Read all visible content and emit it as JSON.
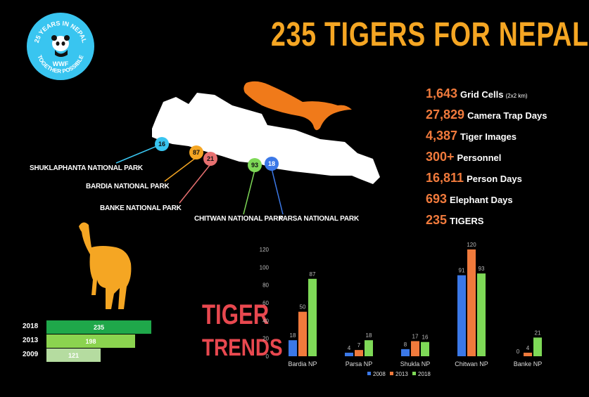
{
  "logo": {
    "ring_text": "25 YEARS IN NEPAL",
    "bottom_text": "TOGETHER POSSIBLE",
    "brand": "WWF",
    "color": "#39c5f0"
  },
  "title": "235 TIGERS FOR NEPAL",
  "stats": [
    {
      "num": "1,643",
      "label": "Grid Cells",
      "unit": "(2x2 km)"
    },
    {
      "num": "27,829",
      "label": "Camera Trap Days"
    },
    {
      "num": "4,387",
      "label": "Tiger Images"
    },
    {
      "num": "300+",
      "label": "Personnel"
    },
    {
      "num": "16,811",
      "label": "Person Days"
    },
    {
      "num": "693",
      "label": "Elephant Days"
    },
    {
      "num": "235",
      "label": "TIGERS"
    }
  ],
  "map": {
    "parks": [
      {
        "name": "SHUKLAPHANTA NATIONAL PARK",
        "count": "16",
        "color": "#39c5f0"
      },
      {
        "name": "BARDIA NATIONAL PARK",
        "count": "87",
        "color": "#f5a623"
      },
      {
        "name": "BANKE NATIONAL PARK",
        "count": "21",
        "color": "#e87070"
      },
      {
        "name": "CHITWAN NATIONAL PARK",
        "count": "93",
        "color": "#7ed957"
      },
      {
        "name": "PARSA NATIONAL PARK",
        "count": "18",
        "color": "#3b78e7"
      }
    ]
  },
  "trends": {
    "title": "TIGER",
    "subtitle": "TRENDS"
  },
  "chart_data": [
    {
      "type": "bar",
      "orientation": "horizontal",
      "categories": [
        "2018",
        "2013",
        "2009"
      ],
      "values": [
        235,
        198,
        121
      ],
      "colors": [
        "#1fa84a",
        "#8bd34f",
        "#b5dca0"
      ],
      "xlim": [
        0,
        255
      ]
    },
    {
      "type": "bar",
      "categories": [
        "Bardia NP",
        "Parsa NP",
        "Shukla NP",
        "Chitwan NP",
        "Banke NP"
      ],
      "series": [
        {
          "name": "2008",
          "values": [
            18,
            4,
            8,
            91,
            0
          ],
          "color": "#3b78e7"
        },
        {
          "name": "2013",
          "values": [
            50,
            7,
            17,
            120,
            4
          ],
          "color": "#f07a3c"
        },
        {
          "name": "2018",
          "values": [
            87,
            18,
            16,
            93,
            21
          ],
          "color": "#7ed957"
        }
      ],
      "ylim": [
        0,
        120
      ],
      "yticks": [
        "0",
        "20",
        "40",
        "60",
        "80",
        "100",
        "120"
      ],
      "legend": "bottom"
    }
  ]
}
